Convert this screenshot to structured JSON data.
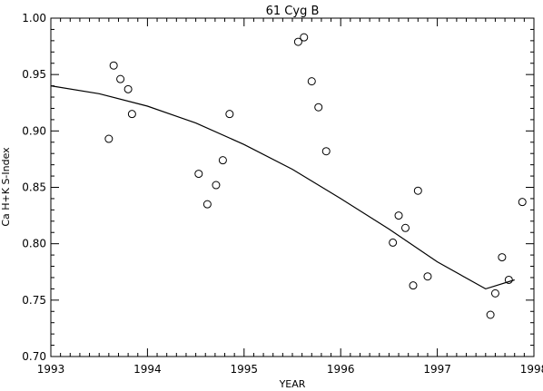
{
  "chart_data": {
    "type": "scatter",
    "title": "61 Cyg B",
    "xlabel": "YEAR",
    "ylabel": "Ca H+K S-Index",
    "xlim": [
      1993,
      1998
    ],
    "ylim": [
      0.7,
      1.0
    ],
    "xticks": [
      1993,
      1994,
      1995,
      1996,
      1997,
      1998
    ],
    "yticks": [
      0.7,
      0.75,
      0.8,
      0.85,
      0.9,
      0.95,
      1.0
    ],
    "xtick_labels": [
      "1993",
      "1994",
      "1995",
      "1996",
      "1997",
      "1998"
    ],
    "ytick_labels": [
      "0.70",
      "0.75",
      "0.80",
      "0.85",
      "0.90",
      "0.95",
      "1.00"
    ],
    "grid": false,
    "series": [
      {
        "type": "scatter",
        "marker": "open-circle",
        "points": [
          [
            1993.6,
            0.893
          ],
          [
            1993.65,
            0.958
          ],
          [
            1993.72,
            0.946
          ],
          [
            1993.8,
            0.937
          ],
          [
            1993.84,
            0.915
          ],
          [
            1994.53,
            0.862
          ],
          [
            1994.62,
            0.835
          ],
          [
            1994.71,
            0.852
          ],
          [
            1994.78,
            0.874
          ],
          [
            1994.85,
            0.915
          ],
          [
            1995.56,
            0.979
          ],
          [
            1995.62,
            0.983
          ],
          [
            1995.7,
            0.944
          ],
          [
            1995.77,
            0.921
          ],
          [
            1995.85,
            0.882
          ],
          [
            1996.54,
            0.801
          ],
          [
            1996.6,
            0.825
          ],
          [
            1996.67,
            0.814
          ],
          [
            1996.75,
            0.763
          ],
          [
            1996.8,
            0.847
          ],
          [
            1996.9,
            0.771
          ],
          [
            1997.55,
            0.737
          ],
          [
            1997.6,
            0.756
          ],
          [
            1997.67,
            0.788
          ],
          [
            1997.74,
            0.768
          ],
          [
            1997.88,
            0.837
          ]
        ]
      },
      {
        "type": "line",
        "style": "fit-curve",
        "points": [
          [
            1993.0,
            0.94
          ],
          [
            1993.5,
            0.933
          ],
          [
            1994.0,
            0.922
          ],
          [
            1994.5,
            0.907
          ],
          [
            1995.0,
            0.888
          ],
          [
            1995.5,
            0.866
          ],
          [
            1996.0,
            0.84
          ],
          [
            1996.5,
            0.813
          ],
          [
            1997.0,
            0.784
          ],
          [
            1997.5,
            0.76
          ],
          [
            1997.8,
            0.768
          ]
        ]
      }
    ]
  }
}
